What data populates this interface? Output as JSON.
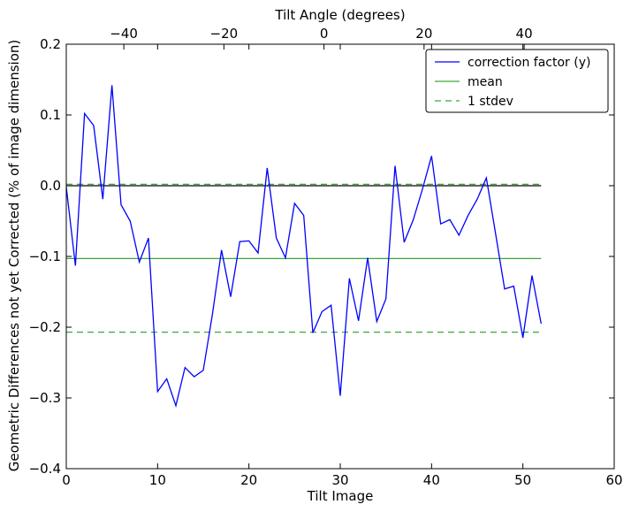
{
  "chart_data": {
    "type": "line",
    "xlabel": "Tilt Image",
    "ylabel": "Geometric Differences not yet Corrected (% of image dimension)",
    "top_xlabel": "Tilt Angle (degrees)",
    "xlim": [
      0,
      60
    ],
    "ylim": [
      -0.4,
      0.2
    ],
    "top_xlim": [
      -51.5,
      58.0
    ],
    "x_ticks": [
      0,
      10,
      20,
      30,
      40,
      50,
      60
    ],
    "y_ticks": [
      -0.4,
      -0.3,
      -0.2,
      -0.1,
      0.0,
      0.1,
      0.2
    ],
    "top_x_ticks": [
      -40,
      -20,
      0,
      20,
      40
    ],
    "x_tick_labels": [
      "0",
      "10",
      "20",
      "30",
      "40",
      "50",
      "60"
    ],
    "y_tick_labels": [
      "−0.4",
      "−0.3",
      "−0.2",
      "−0.1",
      "0.0",
      "0.1",
      "0.2"
    ],
    "top_x_tick_labels": [
      "−40",
      "−20",
      "0",
      "20",
      "40"
    ],
    "grid": false,
    "legend_position": "top-right",
    "series": [
      {
        "name": "correction factor (y)",
        "color": "#0000ff",
        "style": "solid",
        "x": [
          0,
          1,
          2,
          3,
          4,
          5,
          6,
          7,
          8,
          9,
          10,
          11,
          12,
          13,
          14,
          15,
          16,
          17,
          18,
          19,
          20,
          21,
          22,
          23,
          24,
          25,
          26,
          27,
          28,
          29,
          30,
          31,
          32,
          33,
          34,
          35,
          36,
          37,
          38,
          39,
          40,
          41,
          42,
          43,
          44,
          45,
          46,
          47,
          48,
          49,
          50,
          51,
          52
        ],
        "values": [
          -0.002,
          -0.113,
          0.102,
          0.085,
          -0.019,
          0.142,
          -0.027,
          -0.05,
          -0.108,
          -0.074,
          -0.291,
          -0.273,
          -0.311,
          -0.257,
          -0.27,
          -0.261,
          -0.182,
          -0.091,
          -0.157,
          -0.079,
          -0.078,
          -0.095,
          0.025,
          -0.074,
          -0.102,
          -0.025,
          -0.042,
          -0.208,
          -0.178,
          -0.169,
          -0.297,
          -0.131,
          -0.191,
          -0.102,
          -0.192,
          -0.16,
          0.028,
          -0.08,
          -0.048,
          -0.005,
          0.042,
          -0.054,
          -0.048,
          -0.07,
          -0.042,
          -0.019,
          0.011,
          -0.067,
          -0.146,
          -0.142,
          -0.215,
          -0.127,
          -0.195
        ]
      },
      {
        "name": "mean",
        "color": "#3aa83a",
        "style": "solid",
        "x": [
          0,
          52
        ],
        "values": [
          -0.103,
          -0.103
        ]
      },
      {
        "name": "1 stdev",
        "color": "#3aa83a",
        "style": "dashed",
        "x": [
          0,
          52
        ],
        "values": [
          0.002,
          0.002
        ]
      },
      {
        "name": "",
        "color": "#3aa83a",
        "style": "dashed",
        "x": [
          0,
          52
        ],
        "values": [
          -0.207,
          -0.207
        ]
      },
      {
        "name": "",
        "color": "#000000",
        "style": "solid",
        "x": [
          0,
          52
        ],
        "values": [
          0.0,
          0.0
        ]
      }
    ]
  }
}
